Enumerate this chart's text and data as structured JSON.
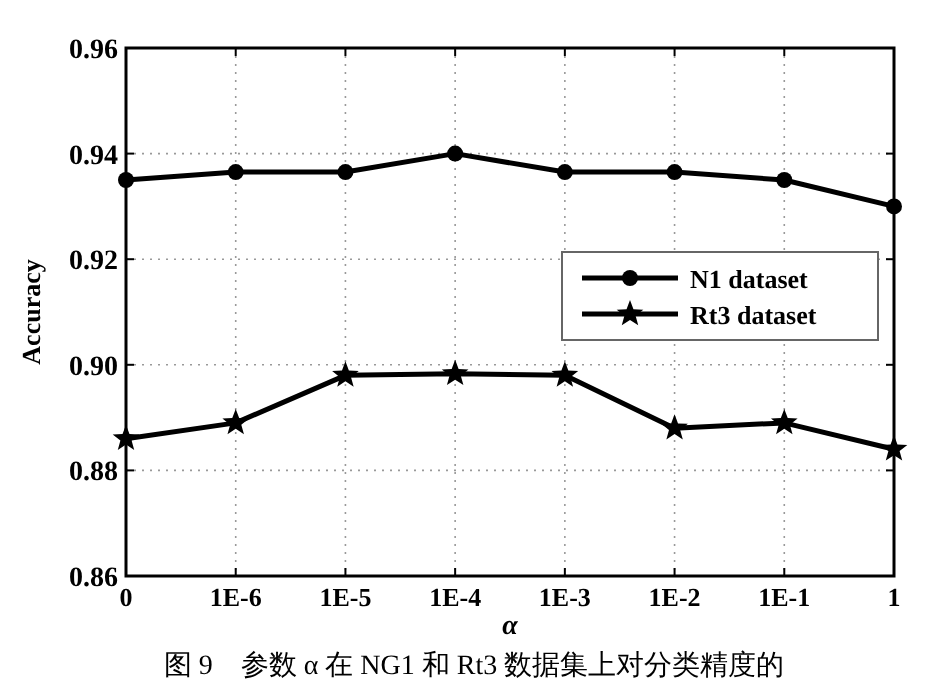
{
  "chart_data": {
    "type": "line",
    "xlabel": "α",
    "ylabel": "Accuracy",
    "categories": [
      "0",
      "1E-6",
      "1E-5",
      "1E-4",
      "1E-3",
      "1E-2",
      "1E-1",
      "1"
    ],
    "series": [
      {
        "name": "N1 dataset",
        "color": "#000000",
        "marker": "circle",
        "values": [
          0.935,
          0.9365,
          0.9365,
          0.94,
          0.9365,
          0.9365,
          0.935,
          0.93
        ]
      },
      {
        "name": "Rt3 dataset",
        "color": "#000000",
        "marker": "star",
        "values": [
          0.886,
          0.889,
          0.898,
          0.8983,
          0.898,
          0.888,
          0.889,
          0.884
        ]
      }
    ],
    "ylim": [
      0.86,
      0.96
    ],
    "yticks": [
      {
        "value": 0.86,
        "label": "0.86"
      },
      {
        "value": 0.88,
        "label": "0.88"
      },
      {
        "value": 0.9,
        "label": "0.90"
      },
      {
        "value": 0.92,
        "label": "0.92"
      },
      {
        "value": 0.94,
        "label": "0.94"
      },
      {
        "value": 0.96,
        "label": "0.96"
      }
    ],
    "grid": true,
    "legend": "right",
    "line_style": "solid",
    "annotations": [
      "图 9　参数 α 在 NG1 和 Rt3 数据集上对分类精度的"
    ]
  }
}
